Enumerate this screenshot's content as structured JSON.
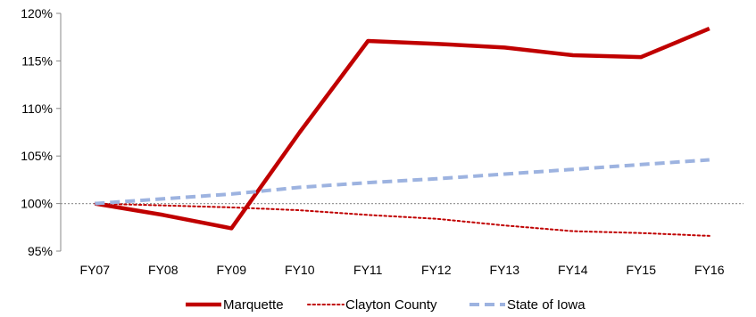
{
  "chart_data": {
    "type": "line",
    "categories": [
      "FY07",
      "FY08",
      "FY09",
      "FY10",
      "FY11",
      "FY12",
      "FY13",
      "FY14",
      "FY15",
      "FY16"
    ],
    "ylim": [
      95,
      120
    ],
    "y_ticks": [
      95,
      100,
      105,
      110,
      115,
      120
    ],
    "y_tick_format": "{v}%",
    "reference_line": {
      "value": 100,
      "style": "dotted",
      "color": "#999999"
    },
    "grid": false,
    "legend_position": "bottom",
    "series": [
      {
        "name": "Marquette",
        "values": [
          100,
          98.8,
          97.4,
          107.5,
          117.1,
          116.8,
          116.4,
          115.6,
          115.4,
          118.4
        ],
        "color": "#C00000",
        "style": "solid"
      },
      {
        "name": "Clayton County",
        "values": [
          100,
          99.8,
          99.6,
          99.3,
          98.8,
          98.4,
          97.7,
          97.1,
          96.9,
          96.6
        ],
        "color": "#C00000",
        "style": "dotted"
      },
      {
        "name": "State of Iowa",
        "values": [
          100,
          100.5,
          101.0,
          101.7,
          102.2,
          102.6,
          103.1,
          103.6,
          104.1,
          104.6
        ],
        "color": "#9DB3E0",
        "style": "dashed"
      }
    ]
  }
}
